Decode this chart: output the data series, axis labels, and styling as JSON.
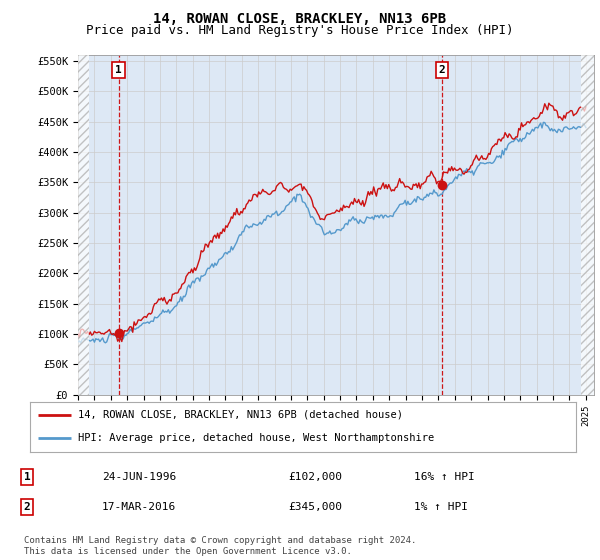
{
  "title": "14, ROWAN CLOSE, BRACKLEY, NN13 6PB",
  "subtitle": "Price paid vs. HM Land Registry's House Price Index (HPI)",
  "x_start_year": 1994,
  "x_end_year": 2025,
  "ylim": [
    0,
    560000
  ],
  "yticks": [
    0,
    50000,
    100000,
    150000,
    200000,
    250000,
    300000,
    350000,
    400000,
    450000,
    500000,
    550000
  ],
  "ytick_labels": [
    "£0",
    "£50K",
    "£100K",
    "£150K",
    "£200K",
    "£250K",
    "£300K",
    "£350K",
    "£400K",
    "£450K",
    "£500K",
    "£550K"
  ],
  "transaction1_date": 1996.48,
  "transaction1_price": 102000,
  "transaction1_label": "1",
  "transaction2_date": 2016.21,
  "transaction2_price": 345000,
  "transaction2_label": "2",
  "hpi_line_color": "#5599cc",
  "price_line_color": "#cc1111",
  "vline_color": "#cc0000",
  "grid_color": "#cccccc",
  "background_color": "#ffffff",
  "plot_bg_color": "#dde8f5",
  "legend_entry1": "14, ROWAN CLOSE, BRACKLEY, NN13 6PB (detached house)",
  "legend_entry2": "HPI: Average price, detached house, West Northamptonshire",
  "table_row1_num": "1",
  "table_row1_date": "24-JUN-1996",
  "table_row1_price": "£102,000",
  "table_row1_hpi": "16% ↑ HPI",
  "table_row2_num": "2",
  "table_row2_date": "17-MAR-2016",
  "table_row2_price": "£345,000",
  "table_row2_hpi": "1% ↑ HPI",
  "footer": "Contains HM Land Registry data © Crown copyright and database right 2024.\nThis data is licensed under the Open Government Licence v3.0.",
  "title_fontsize": 10,
  "subtitle_fontsize": 9
}
